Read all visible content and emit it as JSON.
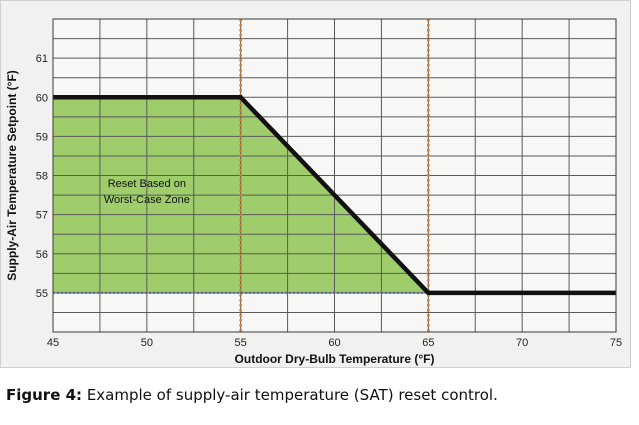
{
  "chart_data": {
    "type": "line",
    "xlabel": "Outdoor Dry-Bulb Temperature (°F)",
    "ylabel": "Supply-Air Temperature Setpoint (°F)",
    "xlim": [
      45,
      75
    ],
    "ylim": [
      54,
      62
    ],
    "x_ticks": [
      45,
      50,
      55,
      60,
      65,
      70,
      75
    ],
    "y_ticks": [
      55,
      56,
      57,
      58,
      59,
      60,
      61
    ],
    "grid": true,
    "series": [
      {
        "x": [
          45,
          55,
          65,
          75
        ],
        "y": [
          60,
          60,
          55,
          55
        ]
      }
    ],
    "shaded_region": {
      "x": [
        45,
        55,
        65
      ],
      "y_top": [
        60,
        60,
        55
      ],
      "y_bottom": 55
    },
    "vertical_markers": [
      55,
      65
    ],
    "horizontal_marker": 55,
    "annotation": {
      "lines": [
        "Reset Based on",
        "Worst-Case Zone"
      ],
      "x": 50,
      "y": 57.7
    },
    "colors": {
      "line": "#111111",
      "fill": "#9fcd6c",
      "grid": "#5a5a5a",
      "markers": "#e07b28",
      "baseline": "#5a63a8",
      "plot_bg": "#f7f7f5"
    }
  },
  "caption": {
    "label": "Figure 4:",
    "text": " Example of supply-air temperature (SAT) reset control."
  }
}
